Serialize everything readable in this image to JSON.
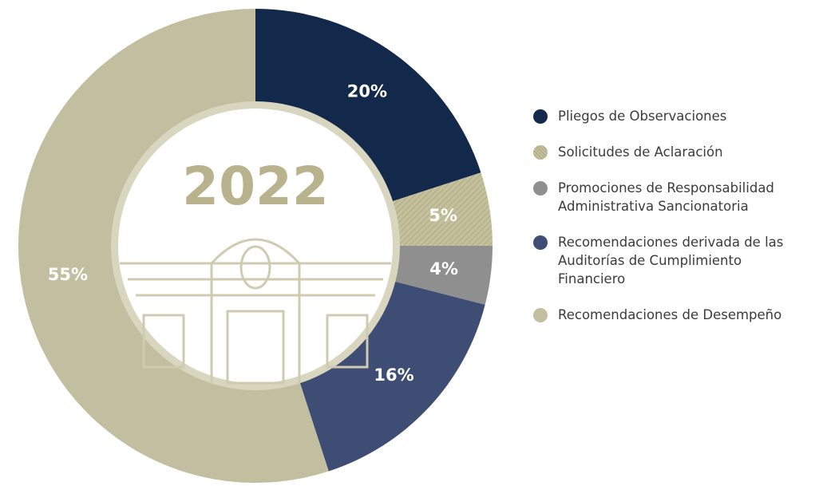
{
  "chart_data": {
    "type": "donut",
    "title": "2022",
    "categories": [
      "Pliegos de Observaciones",
      "Solicitudes de Aclaración",
      "Promociones de Responsabilidad Administrativa Sancionatoria",
      "Recomendaciones derivada de las Auditorías de Cumplimiento Financiero",
      "Recomendaciones de Desempeño"
    ],
    "values": [
      20,
      5,
      4,
      16,
      55
    ],
    "value_labels": [
      "20%",
      "5%",
      "4%",
      "16%",
      "55%"
    ],
    "colors": [
      "#13294b",
      "#c4c09c",
      "#8f8f8f",
      "#3e4d73",
      "#c1bf9f"
    ]
  }
}
